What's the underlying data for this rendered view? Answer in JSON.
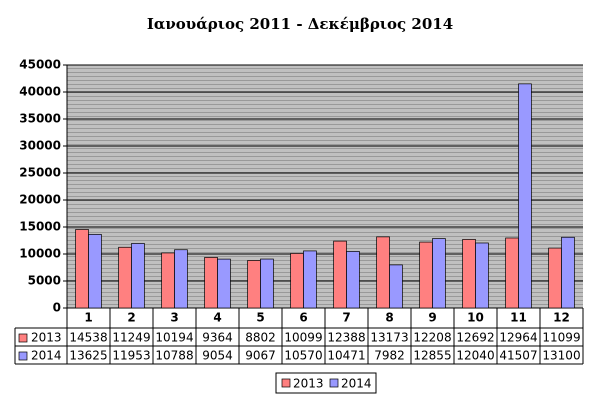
{
  "chart_data": {
    "type": "bar",
    "title": "Ιανουάριος 2011 - Δεκέμβριος 2014",
    "categories": [
      "1",
      "2",
      "3",
      "4",
      "5",
      "6",
      "7",
      "8",
      "9",
      "10",
      "11",
      "12"
    ],
    "series": [
      {
        "name": "2013",
        "color": "#ff8080",
        "values": [
          14538,
          11249,
          10194,
          9364,
          8802,
          10099,
          12388,
          13173,
          12208,
          12692,
          12964,
          11099
        ]
      },
      {
        "name": "2014",
        "color": "#9999ff",
        "values": [
          13625,
          11953,
          10788,
          9054,
          9067,
          10570,
          10471,
          7982,
          12855,
          12040,
          41507,
          13100
        ]
      }
    ],
    "ylim": [
      0,
      45000
    ],
    "yticks": [
      0,
      5000,
      10000,
      15000,
      20000,
      25000,
      30000,
      35000,
      40000,
      45000
    ],
    "grid": true,
    "legend": "bottom",
    "data_table": true
  }
}
